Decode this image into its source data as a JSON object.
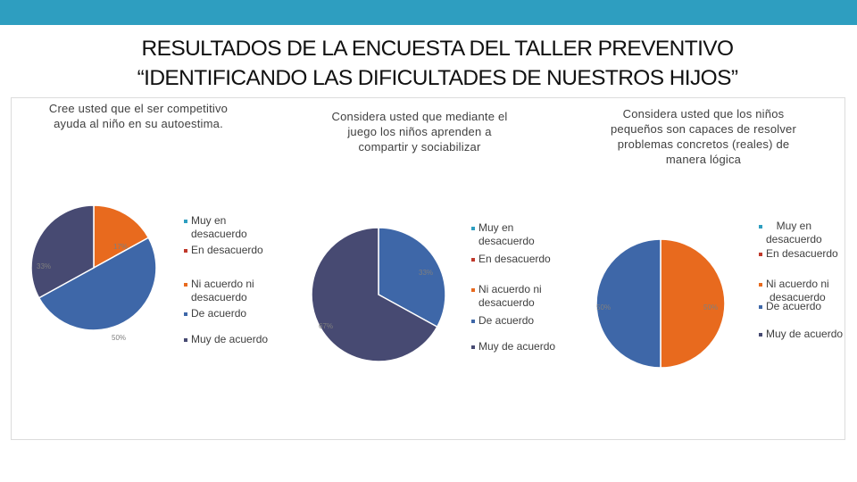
{
  "header": {
    "title_line1": "RESULTADOS DE LA ENCUESTA DEL TALLER PREVENTIVO",
    "title_line2": "“IDENTIFICANDO LAS DIFICULTADES DE NUESTROS HIJOS”"
  },
  "colors": {
    "top_bar": "#2e9ec0",
    "muy_en_desacuerdo": "#2e9ec0",
    "en_desacuerdo": "#c0392b",
    "ni_acuerdo_ni_desacuerdo": "#e86a1e",
    "de_acuerdo": "#3e67a8",
    "muy_de_acuerdo": "#474a72"
  },
  "chart_data": [
    {
      "type": "pie",
      "title_lines": [
        "Cree usted que el ser competitivo",
        "ayuda al niño en su autoestima."
      ],
      "categories": [
        "Muy en desacuerdo",
        "En desacuerdo",
        "Ni acuerdo ni desacuerdo",
        "De acuerdo",
        "Muy de acuerdo"
      ],
      "legend_lines": [
        [
          "Muy en",
          "desacuerdo"
        ],
        [
          "En desacuerdo"
        ],
        [
          "Ni acuerdo ni",
          "desacuerdo"
        ],
        [
          "De acuerdo"
        ],
        [
          "Muy de acuerdo"
        ]
      ],
      "values": [
        0,
        0,
        17,
        50,
        33
      ],
      "data_labels": [
        "",
        "",
        "17%",
        "50%",
        "33%"
      ],
      "legend_position": "right"
    },
    {
      "type": "pie",
      "title_lines": [
        "Considera usted que mediante el",
        "juego los niños aprenden a",
        "compartir y sociabilizar"
      ],
      "categories": [
        "Muy en desacuerdo",
        "En desacuerdo",
        "Ni acuerdo ni desacuerdo",
        "De acuerdo",
        "Muy de acuerdo"
      ],
      "legend_lines": [
        [
          "Muy en",
          "desacuerdo"
        ],
        [
          "En desacuerdo"
        ],
        [
          "Ni acuerdo ni",
          "desacuerdo"
        ],
        [
          "De acuerdo"
        ],
        [
          "Muy de acuerdo"
        ]
      ],
      "values": [
        0,
        0,
        0,
        33,
        67
      ],
      "data_labels": [
        "",
        "",
        "",
        "33%",
        "67%"
      ],
      "legend_position": "right"
    },
    {
      "type": "pie",
      "title_lines": [
        "Considera usted que los niños",
        "pequeños son capaces de resolver",
        "problemas concretos (reales) de",
        "manera lógica"
      ],
      "categories": [
        "Muy en desacuerdo",
        "En desacuerdo",
        "Ni acuerdo ni desacuerdo",
        "De acuerdo",
        "Muy de acuerdo"
      ],
      "legend_lines": [
        [
          "Muy en",
          "desacuerdo"
        ],
        [
          "En desacuerdo"
        ],
        [
          "Ni acuerdo ni",
          "desacuerdo"
        ],
        [
          "De acuerdo"
        ],
        [
          "Muy de acuerdo"
        ]
      ],
      "values": [
        0,
        0,
        50,
        50,
        0
      ],
      "data_labels": [
        "",
        "",
        "50%",
        "50%",
        ""
      ],
      "legend_position": "right"
    }
  ]
}
